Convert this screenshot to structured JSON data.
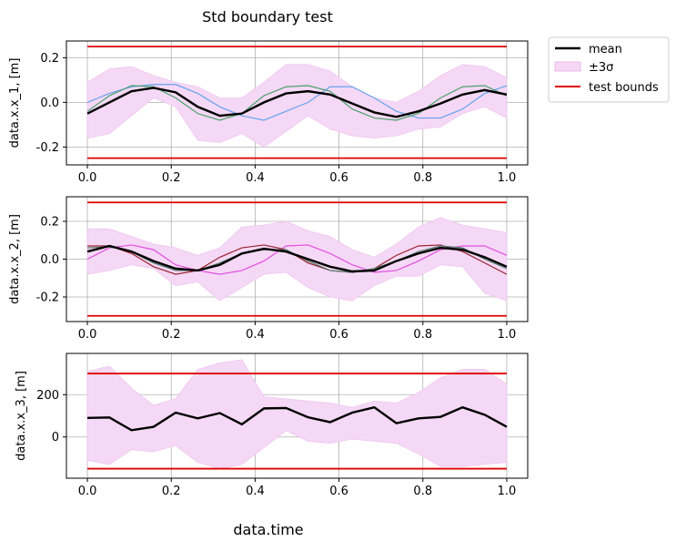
{
  "figure": {
    "title": "Std boundary test",
    "xlabel": "data.time"
  },
  "legend": {
    "entries": [
      {
        "label": "mean",
        "kind": "line",
        "color": "#000000"
      },
      {
        "label": "±3σ",
        "kind": "band",
        "color": "#f5d8f5"
      },
      {
        "label": "test bounds",
        "kind": "line",
        "color": "#dd0000"
      }
    ]
  },
  "chart_data": [
    {
      "type": "line",
      "ylabel": "data.x.x_1, [m]",
      "xlim": [
        -0.05,
        1.05
      ],
      "ylim": [
        -0.28,
        0.275
      ],
      "grid": true,
      "x": [
        0,
        0.0526,
        0.1053,
        0.1579,
        0.2105,
        0.2632,
        0.3158,
        0.3684,
        0.4211,
        0.4737,
        0.5263,
        0.5789,
        0.6316,
        0.6842,
        0.7368,
        0.7895,
        0.8421,
        0.8947,
        0.9474,
        1.0
      ],
      "xticks": [
        0.0,
        0.2,
        0.4,
        0.6,
        0.8,
        1.0
      ],
      "yticks": [
        -0.2,
        0.0,
        0.2
      ],
      "bounds": [
        -0.25,
        0.25
      ],
      "mean": [
        -0.05,
        0.0,
        0.05,
        0.065,
        0.045,
        -0.02,
        -0.06,
        -0.05,
        0.0,
        0.04,
        0.05,
        0.035,
        -0.005,
        -0.045,
        -0.065,
        -0.04,
        -0.005,
        0.035,
        0.055,
        0.035
      ],
      "band_upper": [
        0.09,
        0.15,
        0.16,
        0.12,
        0.09,
        0.07,
        0.02,
        0.02,
        0.09,
        0.17,
        0.17,
        0.14,
        0.07,
        0.02,
        0.0,
        0.05,
        0.12,
        0.17,
        0.16,
        0.11
      ],
      "band_lower": [
        -0.16,
        -0.14,
        -0.06,
        0.02,
        -0.02,
        -0.17,
        -0.18,
        -0.14,
        -0.2,
        -0.13,
        -0.06,
        -0.12,
        -0.15,
        -0.16,
        -0.15,
        -0.12,
        -0.11,
        -0.05,
        -0.02,
        -0.07
      ],
      "series": [
        {
          "color": "#66a3ee",
          "values": [
            0.0,
            0.04,
            0.07,
            0.08,
            0.08,
            0.04,
            -0.02,
            -0.06,
            -0.08,
            -0.04,
            0.0,
            0.07,
            0.07,
            0.02,
            -0.04,
            -0.07,
            -0.07,
            -0.03,
            0.04,
            0.075
          ]
        },
        {
          "color": "#4aa06a",
          "values": [
            -0.04,
            0.03,
            0.075,
            0.07,
            0.02,
            -0.05,
            -0.08,
            -0.05,
            0.03,
            0.07,
            0.075,
            0.05,
            -0.03,
            -0.07,
            -0.08,
            -0.05,
            0.02,
            0.07,
            0.075,
            0.03
          ]
        }
      ]
    },
    {
      "type": "line",
      "ylabel": "data.x.x_2, [m]",
      "xlim": [
        -0.05,
        1.05
      ],
      "ylim": [
        -0.33,
        0.33
      ],
      "grid": true,
      "x": [
        0,
        0.0526,
        0.1053,
        0.1579,
        0.2105,
        0.2632,
        0.3158,
        0.3684,
        0.4211,
        0.4737,
        0.5263,
        0.5789,
        0.6316,
        0.6842,
        0.7368,
        0.7895,
        0.8421,
        0.8947,
        0.9474,
        1.0
      ],
      "xticks": [
        0.0,
        0.2,
        0.4,
        0.6,
        0.8,
        1.0
      ],
      "yticks": [
        -0.2,
        0.0,
        0.2
      ],
      "bounds": [
        -0.3,
        0.3
      ],
      "mean": [
        0.04,
        0.07,
        0.04,
        -0.01,
        -0.05,
        -0.06,
        -0.03,
        0.03,
        0.055,
        0.04,
        0.0,
        -0.04,
        -0.065,
        -0.06,
        -0.01,
        0.03,
        0.06,
        0.05,
        0.01,
        -0.04
      ],
      "band_upper": [
        0.16,
        0.16,
        0.12,
        0.08,
        0.06,
        0.02,
        0.06,
        0.17,
        0.18,
        0.2,
        0.15,
        0.12,
        0.05,
        0.01,
        0.08,
        0.17,
        0.22,
        0.18,
        0.16,
        0.14
      ],
      "band_lower": [
        -0.08,
        -0.06,
        -0.03,
        -0.05,
        -0.14,
        -0.12,
        -0.22,
        -0.15,
        -0.08,
        -0.07,
        -0.15,
        -0.2,
        -0.22,
        -0.14,
        -0.09,
        -0.09,
        -0.03,
        -0.04,
        -0.18,
        -0.22
      ],
      "series": [
        {
          "color": "#e04ee0",
          "values": [
            0.0,
            0.06,
            0.075,
            0.05,
            -0.03,
            -0.06,
            -0.08,
            -0.06,
            -0.01,
            0.07,
            0.075,
            0.03,
            -0.03,
            -0.07,
            -0.06,
            -0.01,
            0.05,
            0.07,
            0.07,
            0.02
          ]
        },
        {
          "color": "#992230",
          "values": [
            0.07,
            0.07,
            0.03,
            -0.04,
            -0.08,
            -0.06,
            0.01,
            0.06,
            0.075,
            0.05,
            -0.02,
            -0.06,
            -0.07,
            -0.05,
            0.02,
            0.07,
            0.075,
            0.04,
            -0.02,
            -0.08
          ]
        },
        {
          "color": "#557a70",
          "values": [
            0.06,
            0.065,
            0.04,
            -0.02,
            -0.06,
            -0.06,
            -0.02,
            0.03,
            0.05,
            0.05,
            -0.01,
            -0.06,
            -0.07,
            -0.05,
            -0.01,
            0.04,
            0.07,
            0.06,
            0.0,
            -0.05
          ]
        }
      ]
    },
    {
      "type": "line",
      "ylabel": "data.x.x_3, [m]",
      "xlim": [
        -0.05,
        1.05
      ],
      "ylim": [
        -195,
        395
      ],
      "grid": true,
      "x": [
        0,
        0.0526,
        0.1053,
        0.1579,
        0.2105,
        0.2632,
        0.3158,
        0.3684,
        0.4211,
        0.4737,
        0.5263,
        0.5789,
        0.6316,
        0.6842,
        0.7368,
        0.7895,
        0.8421,
        0.8947,
        0.9474,
        1.0
      ],
      "xticks": [
        0.0,
        0.2,
        0.4,
        0.6,
        0.8,
        1.0
      ],
      "yticks": [
        0,
        200
      ],
      "bounds": [
        -150,
        300
      ],
      "mean": [
        90,
        92,
        32,
        48,
        115,
        88,
        113,
        60,
        135,
        137,
        93,
        70,
        115,
        140,
        65,
        88,
        95,
        140,
        105,
        48
      ],
      "band_upper": [
        310,
        335,
        230,
        150,
        180,
        320,
        350,
        365,
        190,
        180,
        170,
        160,
        140,
        170,
        160,
        210,
        280,
        320,
        320,
        250
      ],
      "band_lower": [
        -110,
        -130,
        -60,
        -70,
        -40,
        -120,
        -150,
        -130,
        -50,
        30,
        -20,
        -30,
        -10,
        -20,
        -30,
        -80,
        -140,
        -140,
        -130,
        -120
      ]
    }
  ]
}
